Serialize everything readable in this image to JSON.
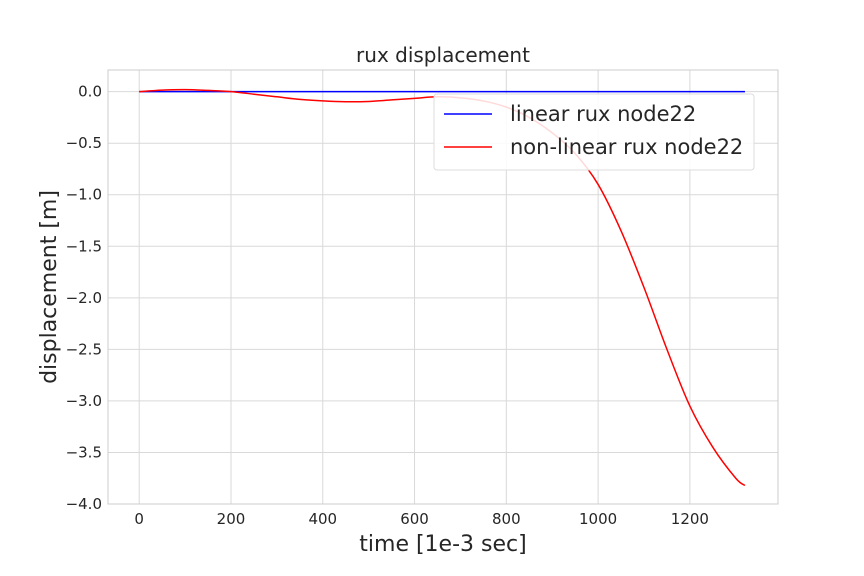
{
  "chart_data": {
    "type": "line",
    "title": "rux displacement",
    "xlabel": "time [1e-3 sec]",
    "ylabel": "displacement [m]",
    "xlim": [
      -68,
      1392
    ],
    "ylim": [
      -4.0,
      0.21
    ],
    "xticks": [
      0,
      200,
      400,
      600,
      800,
      1000,
      1200
    ],
    "yticks": [
      0.0,
      -0.5,
      -1.0,
      -1.5,
      -2.0,
      -2.5,
      -3.0,
      -3.5,
      -4.0
    ],
    "xtick_labels": [
      "0",
      "200",
      "400",
      "600",
      "800",
      "1000",
      "1200"
    ],
    "ytick_labels": [
      "0.0",
      "−0.5",
      "−1.0",
      "−1.5",
      "−2.0",
      "−2.5",
      "−3.0",
      "−3.5",
      "−4.0"
    ],
    "grid": true,
    "legend_position": "upper right",
    "series": [
      {
        "name": "linear rux node22",
        "color": "#0000ff",
        "x": [
          0,
          200,
          400,
          600,
          800,
          1000,
          1200,
          1320
        ],
        "y": [
          0.0,
          0.0,
          0.0,
          0.0,
          0.0,
          0.0,
          0.0,
          0.0
        ]
      },
      {
        "name": "non-linear rux node22",
        "color": "#ff0000",
        "x": [
          0,
          50,
          100,
          150,
          200,
          250,
          300,
          350,
          400,
          450,
          500,
          550,
          600,
          650,
          700,
          750,
          800,
          850,
          900,
          950,
          1000,
          1050,
          1100,
          1150,
          1200,
          1250,
          1300,
          1320
        ],
        "y": [
          0.0,
          0.015,
          0.02,
          0.012,
          0.0,
          -0.025,
          -0.05,
          -0.075,
          -0.09,
          -0.098,
          -0.095,
          -0.08,
          -0.065,
          -0.05,
          -0.06,
          -0.09,
          -0.15,
          -0.25,
          -0.4,
          -0.6,
          -0.9,
          -1.35,
          -1.9,
          -2.5,
          -3.05,
          -3.45,
          -3.75,
          -3.82
        ]
      }
    ]
  }
}
